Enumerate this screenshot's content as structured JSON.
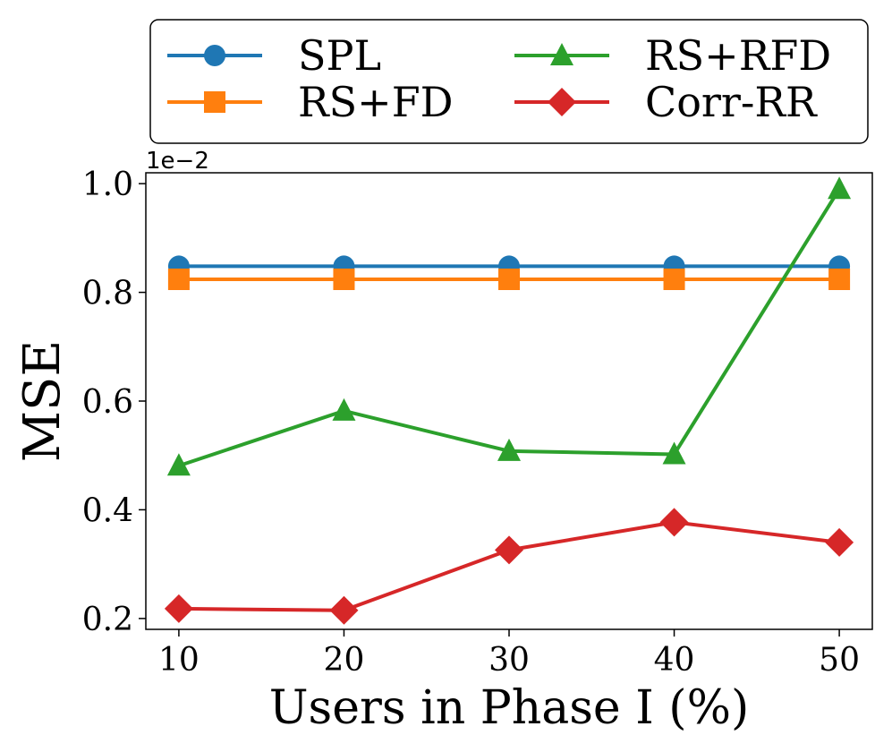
{
  "chart_data": {
    "type": "line",
    "x": [
      10,
      20,
      30,
      40,
      50
    ],
    "xticks": [
      "10",
      "20",
      "30",
      "40",
      "50"
    ],
    "xlabel": "Users in Phase I (%)",
    "ylabel": "MSE",
    "yticks": [
      "0.2",
      "0.4",
      "0.6",
      "0.8",
      "1.0"
    ],
    "ytick_values": [
      0.2,
      0.4,
      0.6,
      0.8,
      1.0
    ],
    "ylim": [
      0.18,
      1.02
    ],
    "xlim": [
      8,
      52
    ],
    "y_offset_label": "1e−2",
    "grid": false,
    "legend_position": "top",
    "series": [
      {
        "name": "SPL",
        "values": [
          0.848,
          0.848,
          0.848,
          0.848,
          0.848
        ],
        "color": "#1f77b4",
        "marker": "circle"
      },
      {
        "name": "RS+FD",
        "values": [
          0.824,
          0.824,
          0.824,
          0.824,
          0.824
        ],
        "color": "#ff7f0e",
        "marker": "square"
      },
      {
        "name": "RS+RFD",
        "values": [
          0.481,
          0.582,
          0.508,
          0.502,
          0.99
        ],
        "color": "#2ca02c",
        "marker": "triangle"
      },
      {
        "name": "Corr-RR",
        "values": [
          0.218,
          0.215,
          0.326,
          0.377,
          0.34
        ],
        "color": "#d62728",
        "marker": "diamond"
      }
    ]
  }
}
